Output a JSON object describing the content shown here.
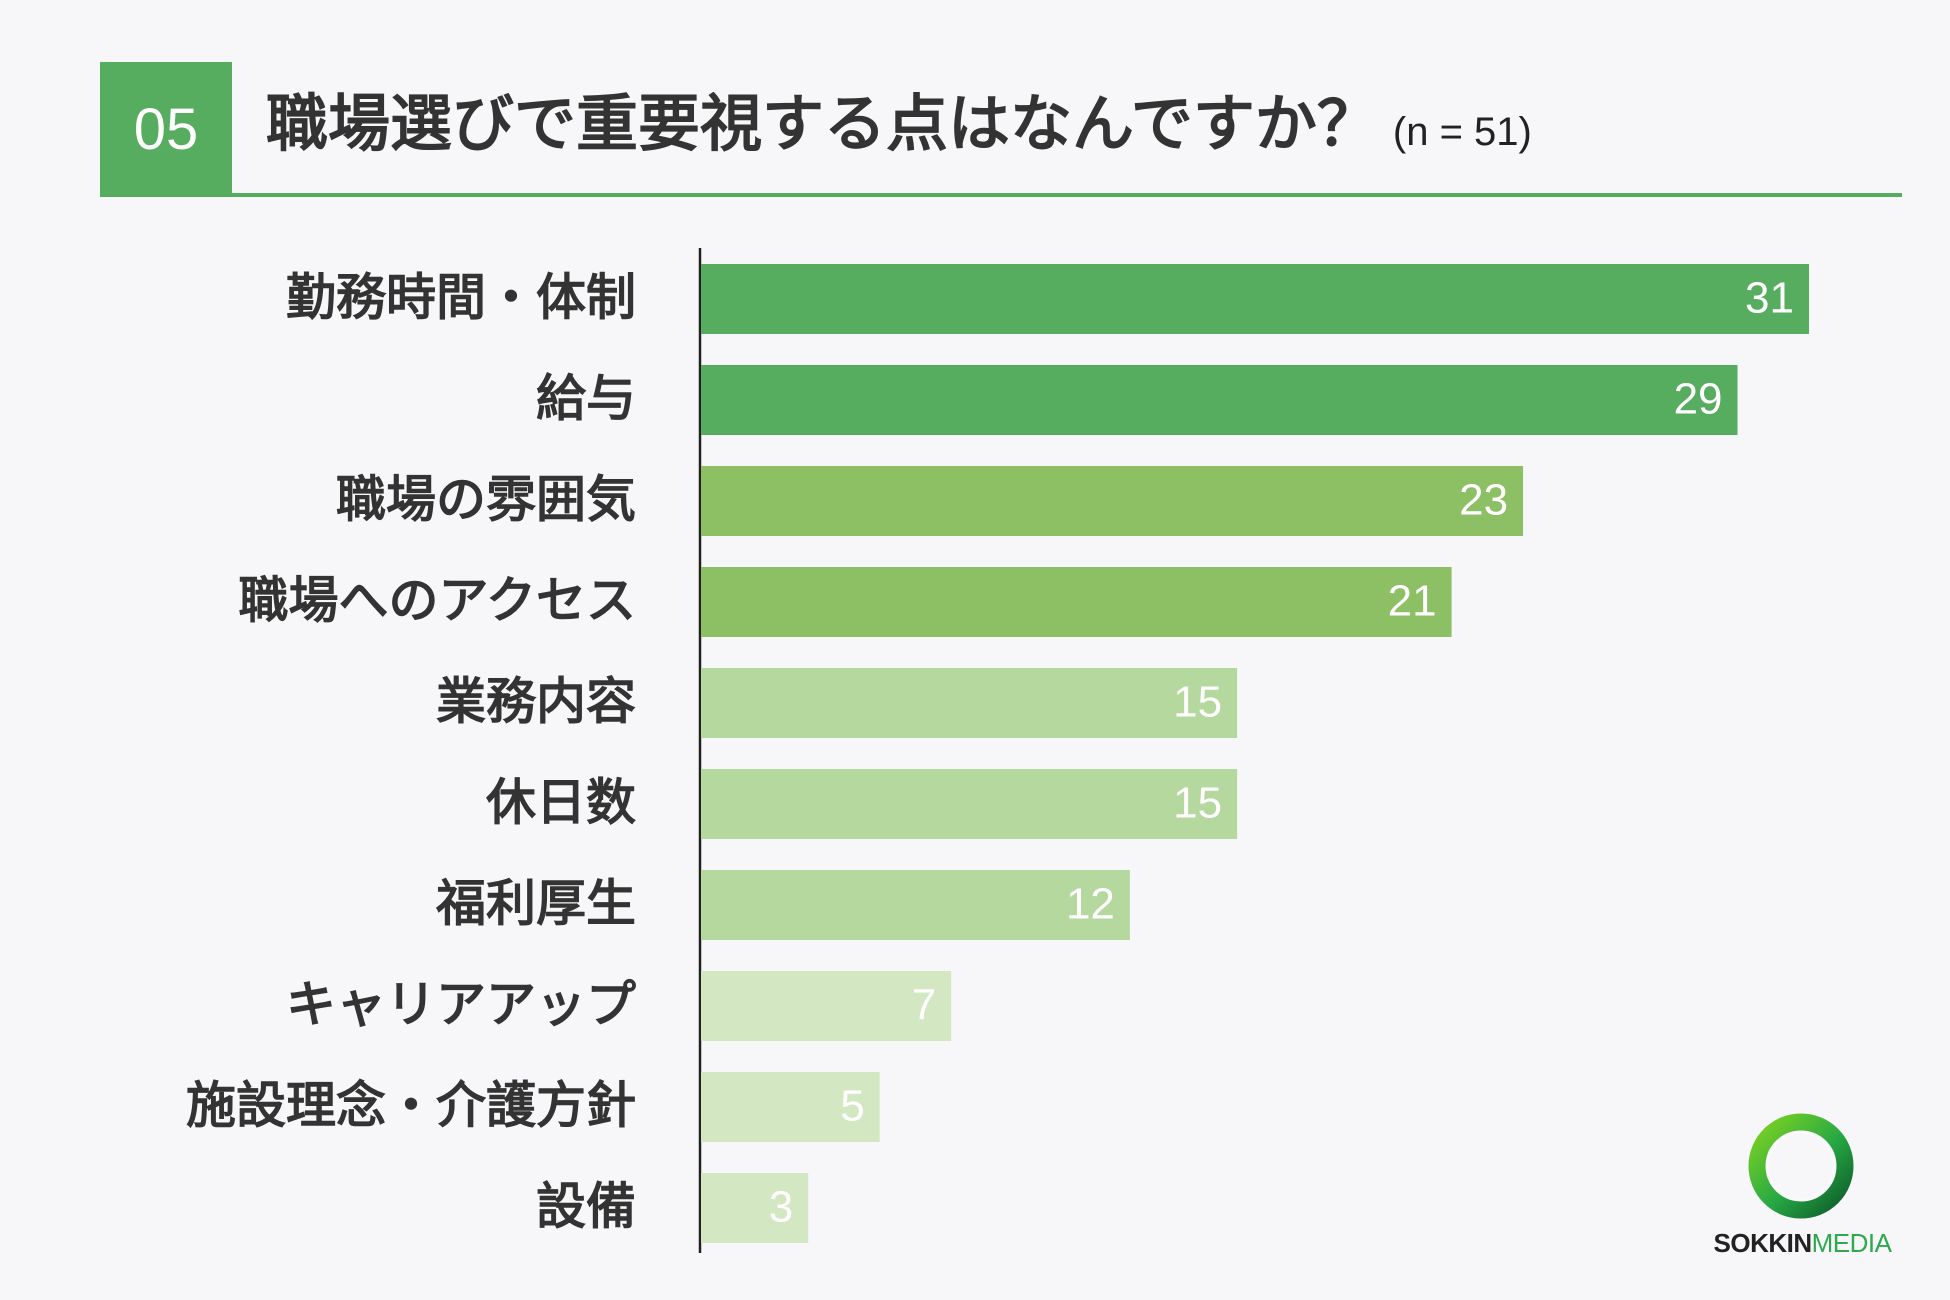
{
  "header": {
    "number": "05",
    "title": "職場選びで重要視する点はなんですか？",
    "note": "(n = 51)"
  },
  "colors": {
    "accent": "#57ad5f",
    "level_1": "#57ad5f",
    "level_2": "#8dc064",
    "level_3": "#b5d89e",
    "level_4": "#d3e8c2"
  },
  "chart_data": {
    "type": "bar",
    "orientation": "horizontal",
    "categories": [
      "勤務時間・体制",
      "給与",
      "職場の雰囲気",
      "職場へのアクセス",
      "業務内容",
      "休日数",
      "福利厚生",
      "キャリアアップ",
      "施設理念・介護方針",
      "設備"
    ],
    "values": [
      31,
      29,
      23,
      21,
      15,
      15,
      12,
      7,
      5,
      3
    ],
    "color_levels": [
      1,
      1,
      2,
      2,
      3,
      3,
      3,
      4,
      4,
      4
    ],
    "xlim": [
      0,
      31
    ],
    "data_labels": true,
    "grid": false
  },
  "logo": {
    "text_bold": "SOKKIN",
    "text_light": "MEDIA",
    "icon": "ring-logo-icon"
  }
}
